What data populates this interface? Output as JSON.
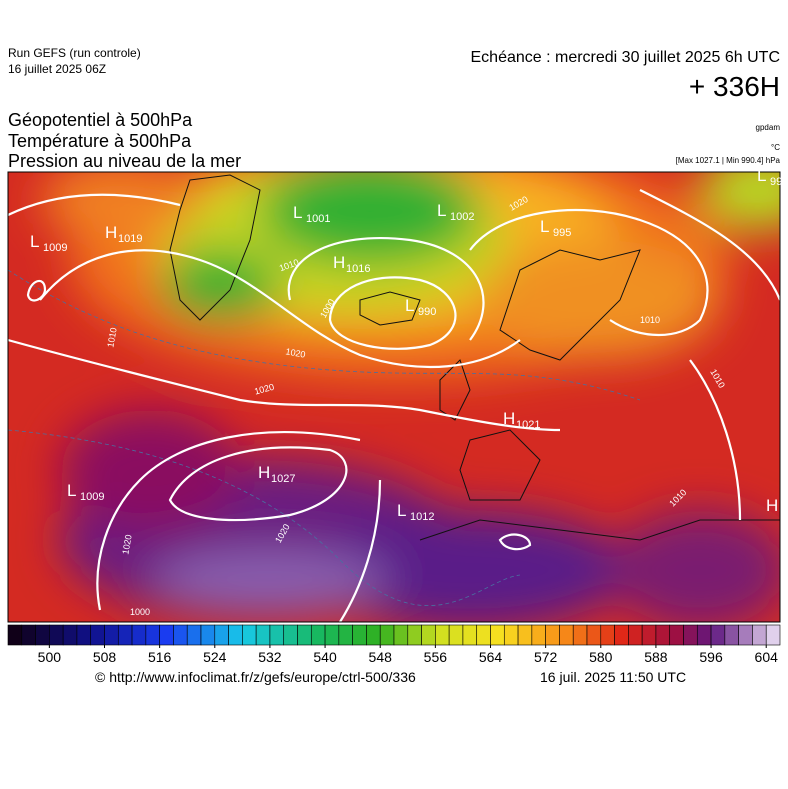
{
  "header": {
    "run": "Run GEFS (run controle)",
    "date": "16 juillet 2025 06Z",
    "echeance": "Echéance : mercredi 30 juillet 2025 6h UTC",
    "lead": "+ 336H"
  },
  "titles": [
    "Géopotentiel à 500hPa",
    "Température à 500hPa",
    "Pression au niveau de la mer"
  ],
  "units": {
    "geopotential": "gpdam",
    "temperature": "°C",
    "pressure": "[Max 1027.1 | Min 990.4] hPa"
  },
  "centers": [
    {
      "kind": "L",
      "value": "1009"
    },
    {
      "kind": "H",
      "value": "1019"
    },
    {
      "kind": "L",
      "value": "1001"
    },
    {
      "kind": "H",
      "value": "1016"
    },
    {
      "kind": "L",
      "value": "1002"
    },
    {
      "kind": "L",
      "value": "995"
    },
    {
      "kind": "L",
      "value": "990"
    },
    {
      "kind": "L",
      "value": "99"
    },
    {
      "kind": "H",
      "value": "1021"
    },
    {
      "kind": "H",
      "value": "1027"
    },
    {
      "kind": "L",
      "value": "1009"
    },
    {
      "kind": "L",
      "value": "1012"
    },
    {
      "kind": "H",
      "value": ""
    }
  ],
  "isobar_labels": [
    "1010",
    "1020",
    "1000",
    "1010",
    "1020",
    "1020",
    "1020",
    "1000",
    "1010",
    "1010",
    "1010",
    "1020"
  ],
  "colorbar": {
    "range": [
      494,
      606
    ],
    "step": 2,
    "ticks": [
      500,
      508,
      516,
      524,
      532,
      540,
      548,
      556,
      564,
      572,
      580,
      588,
      596,
      604
    ]
  },
  "footer": {
    "url": "© http://www.infoclimat.fr/z/gefs/europe/ctrl-500/336",
    "time": "16 juil. 2025 11:50 UTC"
  }
}
